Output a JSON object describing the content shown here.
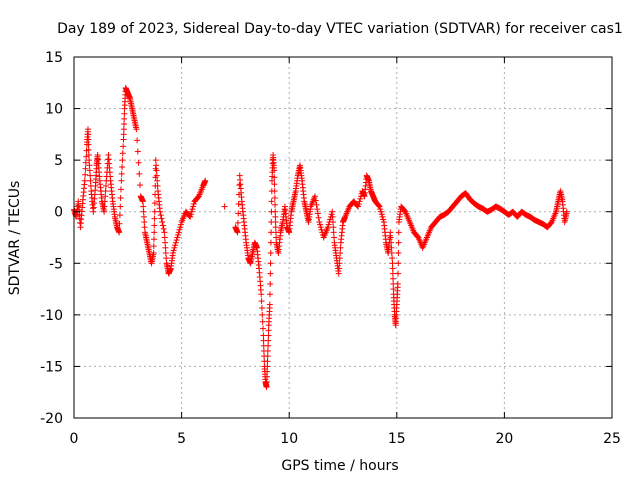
{
  "chart_data": {
    "type": "scatter",
    "title": "Day 189 of 2023, Sidereal Day-to-day VTEC variation (SDTVAR) for receiver cas1",
    "xlabel": "GPS time / hours",
    "ylabel": "SDTVAR / TECUs",
    "xlim": [
      0,
      25
    ],
    "ylim": [
      -20,
      15
    ],
    "xticks": [
      0,
      5,
      10,
      15,
      20,
      25
    ],
    "xtick_labels": [
      "0",
      "5",
      "10",
      "15",
      "20",
      "25"
    ],
    "yticks": [
      -20,
      -15,
      -10,
      -5,
      0,
      5,
      10,
      15
    ],
    "ytick_labels": [
      "-20",
      "-15",
      "-10",
      "-5",
      "0",
      "5",
      "10",
      "15"
    ],
    "grid": true,
    "marker": "+",
    "color": "#ff0000",
    "series": [
      {
        "name": "SDTVAR cas1",
        "trace": [
          [
            0.0,
            0.2
          ],
          [
            0.1,
            -0.5
          ],
          [
            0.2,
            1.0
          ],
          [
            0.3,
            -1.5
          ],
          [
            0.4,
            0.8
          ],
          [
            0.5,
            3.0
          ],
          [
            0.6,
            6.5
          ],
          [
            0.65,
            8.0
          ],
          [
            0.7,
            5.0
          ],
          [
            0.8,
            2.0
          ],
          [
            0.9,
            0.0
          ],
          [
            1.0,
            2.5
          ],
          [
            1.05,
            4.5
          ],
          [
            1.1,
            5.5
          ],
          [
            1.2,
            3.0
          ],
          [
            1.3,
            1.0
          ],
          [
            1.4,
            0.0
          ],
          [
            1.5,
            3.0
          ],
          [
            1.6,
            5.5
          ],
          [
            1.7,
            3.0
          ],
          [
            1.8,
            1.0
          ],
          [
            1.9,
            -0.5
          ],
          [
            2.0,
            -1.5
          ],
          [
            2.1,
            -2.0
          ],
          [
            2.2,
            3.0
          ],
          [
            2.3,
            7.0
          ],
          [
            2.35,
            10.0
          ],
          [
            2.4,
            12.0
          ],
          [
            2.5,
            11.5
          ],
          [
            2.6,
            11.0
          ],
          [
            2.7,
            10.0
          ],
          [
            2.8,
            9.0
          ],
          [
            2.9,
            8.0
          ],
          [
            3.1,
            1.5
          ],
          [
            3.2,
            1.0
          ],
          [
            3.3,
            -2.0
          ],
          [
            3.4,
            -3.0
          ],
          [
            3.5,
            -4.0
          ],
          [
            3.6,
            -5.0
          ],
          [
            3.7,
            -4.0
          ],
          [
            3.75,
            0.0
          ],
          [
            3.8,
            5.0
          ],
          [
            3.9,
            2.0
          ],
          [
            4.0,
            0.0
          ],
          [
            4.2,
            -2.0
          ],
          [
            4.3,
            -5.0
          ],
          [
            4.4,
            -6.0
          ],
          [
            4.5,
            -5.5
          ],
          [
            4.6,
            -4.0
          ],
          [
            4.8,
            -2.5
          ],
          [
            5.0,
            -1.0
          ],
          [
            5.2,
            0.0
          ],
          [
            5.4,
            -0.5
          ],
          [
            5.6,
            1.0
          ],
          [
            5.8,
            1.5
          ],
          [
            6.0,
            2.5
          ],
          [
            6.1,
            3.0
          ],
          [
            7.0,
            0.5
          ],
          [
            7.5,
            -1.5
          ],
          [
            7.6,
            -2.0
          ],
          [
            7.7,
            3.5
          ],
          [
            7.8,
            1.0
          ],
          [
            7.9,
            -1.0
          ],
          [
            8.0,
            -3.0
          ],
          [
            8.1,
            -4.5
          ],
          [
            8.2,
            -5.0
          ],
          [
            8.3,
            -4.0
          ],
          [
            8.4,
            -3.0
          ],
          [
            8.5,
            -3.5
          ],
          [
            8.6,
            -5.5
          ],
          [
            8.7,
            -8.0
          ],
          [
            8.8,
            -12.0
          ],
          [
            8.85,
            -15.0
          ],
          [
            8.9,
            -16.5
          ],
          [
            8.95,
            -17.0
          ],
          [
            9.0,
            -14.0
          ],
          [
            9.05,
            -11.0
          ],
          [
            9.1,
            -9.0
          ],
          [
            9.15,
            -3.0
          ],
          [
            9.2,
            3.0
          ],
          [
            9.25,
            5.5
          ],
          [
            9.3,
            4.0
          ],
          [
            9.35,
            0.0
          ],
          [
            9.4,
            -3.0
          ],
          [
            9.5,
            -4.0
          ],
          [
            9.6,
            -2.0
          ],
          [
            9.7,
            -1.0
          ],
          [
            9.8,
            0.5
          ],
          [
            9.9,
            -1.5
          ],
          [
            10.0,
            -2.0
          ],
          [
            10.1,
            0.0
          ],
          [
            10.2,
            1.0
          ],
          [
            10.3,
            2.0
          ],
          [
            10.4,
            3.5
          ],
          [
            10.5,
            4.5
          ],
          [
            10.6,
            3.0
          ],
          [
            10.7,
            1.0
          ],
          [
            10.8,
            0.0
          ],
          [
            10.9,
            -1.0
          ],
          [
            11.0,
            0.5
          ],
          [
            11.2,
            1.5
          ],
          [
            11.4,
            -1.0
          ],
          [
            11.6,
            -2.5
          ],
          [
            11.8,
            -1.5
          ],
          [
            12.0,
            0.0
          ],
          [
            12.1,
            -3.0
          ],
          [
            12.2,
            -4.5
          ],
          [
            12.3,
            -6.0
          ],
          [
            12.4,
            -3.0
          ],
          [
            12.5,
            -1.0
          ],
          [
            12.6,
            -0.5
          ],
          [
            12.8,
            0.5
          ],
          [
            13.0,
            1.0
          ],
          [
            13.2,
            0.5
          ],
          [
            13.4,
            2.0
          ],
          [
            13.5,
            1.5
          ],
          [
            13.6,
            3.5
          ],
          [
            13.7,
            3.0
          ],
          [
            13.8,
            2.0
          ],
          [
            13.9,
            1.5
          ],
          [
            14.0,
            1.0
          ],
          [
            14.2,
            0.5
          ],
          [
            14.4,
            -1.0
          ],
          [
            14.5,
            -3.0
          ],
          [
            14.6,
            -4.0
          ],
          [
            14.7,
            -2.0
          ],
          [
            14.8,
            -5.0
          ],
          [
            14.85,
            -8.0
          ],
          [
            14.9,
            -10.0
          ],
          [
            14.95,
            -11.0
          ],
          [
            15.0,
            -9.0
          ],
          [
            15.05,
            -7.0
          ],
          [
            15.1,
            -1.0
          ],
          [
            15.2,
            0.5
          ],
          [
            15.4,
            0.0
          ],
          [
            15.6,
            -1.0
          ],
          [
            15.8,
            -2.0
          ],
          [
            16.0,
            -2.5
          ],
          [
            16.2,
            -3.5
          ],
          [
            16.4,
            -2.5
          ],
          [
            16.6,
            -1.5
          ],
          [
            16.8,
            -1.0
          ],
          [
            17.0,
            -0.5
          ],
          [
            17.2,
            -0.3
          ],
          [
            17.4,
            0.0
          ],
          [
            17.6,
            0.5
          ],
          [
            17.8,
            1.0
          ],
          [
            18.0,
            1.5
          ],
          [
            18.2,
            1.8
          ],
          [
            18.4,
            1.2
          ],
          [
            18.6,
            0.8
          ],
          [
            18.8,
            0.5
          ],
          [
            19.0,
            0.3
          ],
          [
            19.2,
            0.0
          ],
          [
            19.4,
            0.2
          ],
          [
            19.6,
            0.5
          ],
          [
            19.8,
            0.3
          ],
          [
            20.0,
            0.0
          ],
          [
            20.2,
            -0.3
          ],
          [
            20.4,
            0.0
          ],
          [
            20.6,
            -0.5
          ],
          [
            20.8,
            0.0
          ],
          [
            21.0,
            -0.3
          ],
          [
            21.2,
            -0.5
          ],
          [
            21.4,
            -0.8
          ],
          [
            21.6,
            -1.0
          ],
          [
            21.8,
            -1.2
          ],
          [
            22.0,
            -1.5
          ],
          [
            22.2,
            -1.0
          ],
          [
            22.4,
            0.0
          ],
          [
            22.5,
            1.0
          ],
          [
            22.6,
            2.0
          ],
          [
            22.7,
            1.0
          ],
          [
            22.8,
            -1.0
          ],
          [
            22.9,
            0.0
          ]
        ]
      }
    ]
  }
}
